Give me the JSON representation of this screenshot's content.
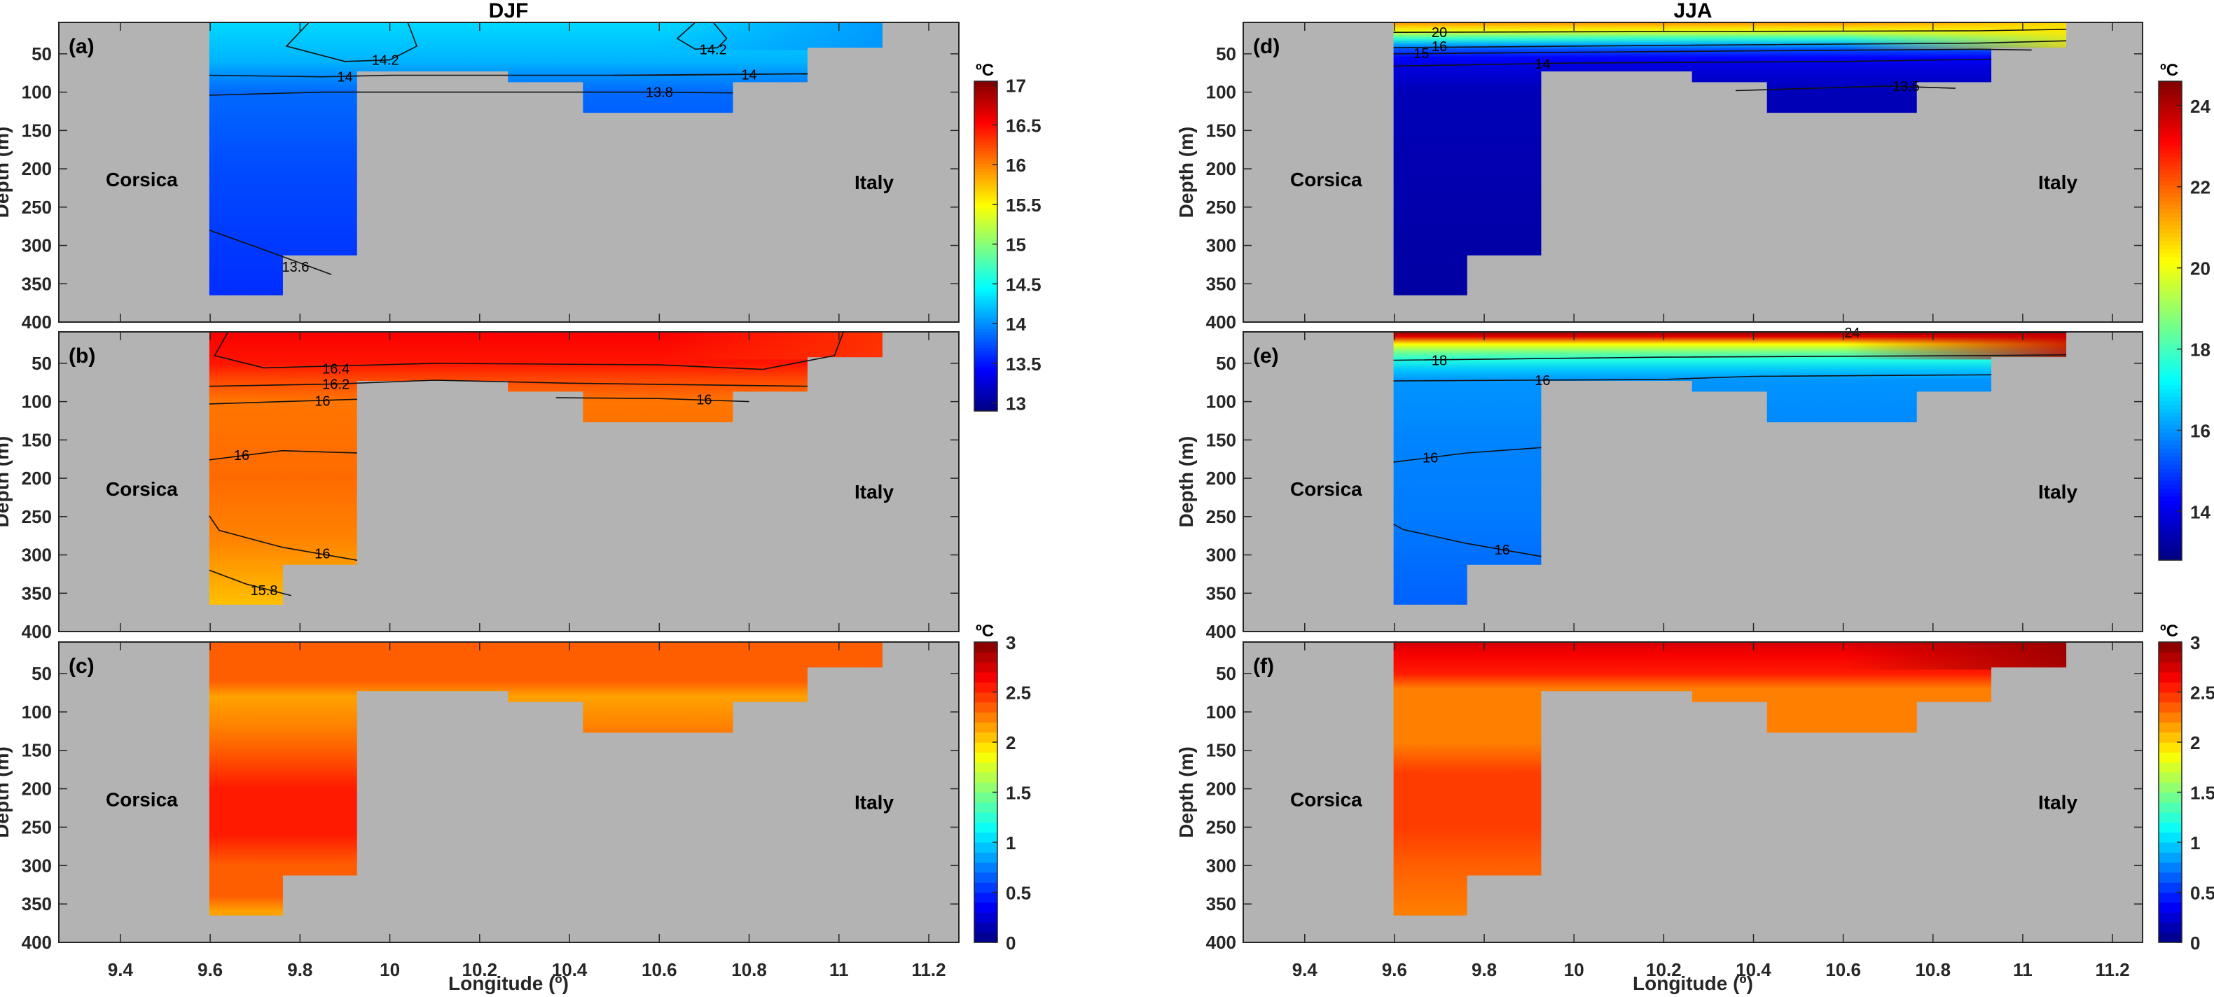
{
  "figure": {
    "column_titles": [
      "DJF",
      "JJA"
    ],
    "xlabel": "Longitude (º)",
    "ylabel": "Depth (m)",
    "left_place": "Corsica",
    "right_place": "Italy",
    "land_color": "#b3b3b3"
  },
  "chart_data": {
    "type": "heatmap",
    "description": "Temperature sections across the Corsica Channel (depth vs longitude), winter (DJF) and summer (JJA).",
    "xlim": [
      9.263,
      11.267
    ],
    "ylim": [
      9,
      400
    ],
    "x_ticks": [
      9.4,
      9.6,
      9.8,
      10,
      10.2,
      10.4,
      10.6,
      10.8,
      11,
      11.2
    ],
    "x_tick_labels": [
      "9.4",
      "9.6",
      "9.8",
      "10",
      "10.2",
      "10.4",
      "10.6",
      "10.8",
      "11",
      "11.2"
    ],
    "y_ticks": [
      50,
      100,
      150,
      200,
      250,
      300,
      350,
      400
    ],
    "y_tick_labels": [
      "50",
      "100",
      "150",
      "200",
      "250",
      "300",
      "350",
      "400"
    ],
    "bathymetry": [
      {
        "lon_from": 9.598,
        "lon_to": 9.762,
        "depth": 365
      },
      {
        "lon_from": 9.762,
        "lon_to": 9.927,
        "depth": 313
      },
      {
        "lon_from": 9.927,
        "lon_to": 10.263,
        "depth": 73
      },
      {
        "lon_from": 10.263,
        "lon_to": 10.43,
        "depth": 87
      },
      {
        "lon_from": 10.43,
        "lon_to": 10.764,
        "depth": 127
      },
      {
        "lon_from": 10.764,
        "lon_to": 10.93,
        "depth": 87
      },
      {
        "lon_from": 10.93,
        "lon_to": 11.097,
        "depth": 42
      }
    ],
    "colorbars": [
      {
        "id": "temp_djf",
        "unit": "ºC",
        "range": [
          12.9,
          17.05
        ],
        "ticks": [
          13,
          13.5,
          14,
          14.5,
          15,
          15.5,
          16,
          16.5,
          17
        ],
        "tick_labels": [
          "13",
          "13.5",
          "14",
          "14.5",
          "15",
          "15.5",
          "16",
          "16.5",
          "17"
        ],
        "discrete": false
      },
      {
        "id": "temp_jja",
        "unit": "ºC",
        "range": [
          12.8,
          24.6
        ],
        "ticks": [
          14,
          16,
          18,
          20,
          22,
          24
        ],
        "tick_labels": [
          "14",
          "16",
          "18",
          "20",
          "22",
          "24"
        ],
        "discrete": false
      },
      {
        "id": "std_djf",
        "unit": "ºC",
        "range": [
          0,
          3
        ],
        "ticks": [
          0,
          0.5,
          1,
          1.5,
          2,
          2.5,
          3
        ],
        "tick_labels": [
          "0",
          "0.5",
          "1",
          "1.5",
          "2",
          "2.5",
          "3"
        ],
        "discrete": true,
        "levels": 30
      },
      {
        "id": "std_jja",
        "unit": "ºC",
        "range": [
          0,
          3
        ],
        "ticks": [
          0,
          0.5,
          1,
          1.5,
          2,
          2.5,
          3
        ],
        "tick_labels": [
          "0",
          "0.5",
          "1",
          "1.5",
          "2",
          "2.5",
          "3"
        ],
        "discrete": true,
        "levels": 30
      }
    ],
    "panels": [
      {
        "tag": "(a)",
        "column": 0,
        "row": 0,
        "colorbar": "temp_djf",
        "profile": [
          [
            9,
            14.3
          ],
          [
            60,
            14.15
          ],
          [
            78,
            14.0
          ],
          [
            100,
            13.85
          ],
          [
            200,
            13.72
          ],
          [
            365,
            13.6
          ]
        ],
        "right_surface_value": 14.0,
        "contours": [
          {
            "level": "14.2",
            "points": [
              [
                9.82,
                9
              ],
              [
                9.77,
                40
              ],
              [
                9.9,
                60
              ],
              [
                10.0,
                58
              ],
              [
                10.06,
                40
              ],
              [
                10.04,
                9
              ]
            ],
            "label_at": [
              9.99,
              58
            ]
          },
          {
            "level": "14.2",
            "points": [
              [
                10.68,
                9
              ],
              [
                10.64,
                30
              ],
              [
                10.68,
                44
              ],
              [
                10.73,
                42
              ],
              [
                10.75,
                30
              ],
              [
                10.72,
                9
              ]
            ],
            "label_at": [
              10.72,
              44
            ]
          },
          {
            "level": "14",
            "points": [
              [
                9.598,
                78
              ],
              [
                9.85,
                80
              ],
              [
                10.0,
                78
              ],
              [
                10.28,
                78
              ],
              [
                10.6,
                78
              ],
              [
                10.93,
                76
              ]
            ],
            "label_at": [
              9.9,
              80
            ]
          },
          {
            "level": "14",
            "points": [
              [
                10.5,
                78
              ],
              [
                10.93,
                76
              ]
            ],
            "label_at": [
              10.8,
              77
            ]
          },
          {
            "level": "13.8",
            "points": [
              [
                9.598,
                104
              ],
              [
                9.85,
                100
              ],
              [
                10.43,
                100
              ],
              [
                10.6,
                100
              ],
              [
                10.764,
                101
              ]
            ],
            "label_at": [
              10.6,
              100
            ]
          },
          {
            "level": "13.6",
            "points": [
              [
                9.598,
                280
              ],
              [
                9.74,
                310
              ],
              [
                9.87,
                338
              ]
            ],
            "label_at": [
              9.79,
              328
            ]
          }
        ],
        "contour_labels": [
          "14.2",
          "14.2",
          "14",
          "14",
          "14",
          "13.8",
          "13.8",
          "13.6"
        ]
      },
      {
        "tag": "(b)",
        "column": 0,
        "row": 1,
        "colorbar": "temp_djf",
        "profile": [
          [
            9,
            16.55
          ],
          [
            50,
            16.45
          ],
          [
            70,
            16.25
          ],
          [
            100,
            16.05
          ],
          [
            200,
            16.1
          ],
          [
            280,
            16.0
          ],
          [
            365,
            15.75
          ]
        ],
        "right_surface_value": 16.3,
        "contours": [
          {
            "level": "16.4",
            "points": [
              [
                9.64,
                9
              ],
              [
                9.61,
                40
              ],
              [
                9.72,
                56
              ],
              [
                10.1,
                50
              ],
              [
                10.6,
                52
              ],
              [
                10.83,
                58
              ],
              [
                10.99,
                40
              ],
              [
                11.01,
                9
              ]
            ],
            "label_at": [
              9.88,
              57
            ]
          },
          {
            "level": "16.2",
            "points": [
              [
                9.598,
                80
              ],
              [
                9.88,
                77
              ],
              [
                10.1,
                72
              ],
              [
                10.4,
                76
              ],
              [
                10.93,
                80
              ]
            ],
            "label_at": [
              9.88,
              77
            ]
          },
          {
            "level": "16",
            "points": [
              [
                9.598,
                103
              ],
              [
                9.927,
                97
              ]
            ],
            "label_at": [
              9.85,
              99
            ]
          },
          {
            "level": "16",
            "points": [
              [
                10.37,
                95
              ],
              [
                10.6,
                96
              ],
              [
                10.8,
                100
              ]
            ],
            "label_at": [
              10.7,
              97
            ]
          },
          {
            "level": "16",
            "points": [
              [
                9.598,
                176
              ],
              [
                9.76,
                164
              ],
              [
                9.927,
                167
              ]
            ],
            "label_at": [
              9.67,
              170
            ]
          },
          {
            "level": "16",
            "points": [
              [
                9.598,
                249
              ],
              [
                9.62,
                268
              ],
              [
                9.76,
                290
              ],
              [
                9.927,
                307
              ]
            ],
            "label_at": [
              9.85,
              298
            ]
          },
          {
            "level": "15.8",
            "points": [
              [
                9.598,
                320
              ],
              [
                9.68,
                338
              ],
              [
                9.78,
                353
              ]
            ],
            "label_at": [
              9.72,
              346
            ]
          }
        ],
        "contour_labels": [
          "16.4",
          "16.4",
          "16.4",
          "16.2",
          "16.2",
          "16.2",
          "16",
          "16",
          "16",
          "16",
          "15.8"
        ]
      },
      {
        "tag": "(c)",
        "column": 0,
        "row": 2,
        "colorbar": "std_djf",
        "profile": [
          [
            9,
            2.3
          ],
          [
            60,
            2.3
          ],
          [
            80,
            2.15
          ],
          [
            120,
            2.2
          ],
          [
            150,
            2.35
          ],
          [
            200,
            2.55
          ],
          [
            260,
            2.5
          ],
          [
            300,
            2.35
          ],
          [
            340,
            2.3
          ],
          [
            360,
            2.15
          ]
        ],
        "right_surface_value": 2.3,
        "contours": [],
        "contour_labels": []
      },
      {
        "tag": "(d)",
        "column": 1,
        "row": 0,
        "colorbar": "temp_jja",
        "profile": [
          [
            9,
            21.5
          ],
          [
            14,
            20.8
          ],
          [
            20,
            20.0
          ],
          [
            30,
            17.8
          ],
          [
            38,
            16.2
          ],
          [
            44,
            15.2
          ],
          [
            55,
            14.3
          ],
          [
            66,
            13.9
          ],
          [
            100,
            13.45
          ],
          [
            365,
            13.2
          ]
        ],
        "right_surface_value": 20.5,
        "contours": [
          {
            "level": "20",
            "points": [
              [
                9.598,
                22
              ],
              [
                10.2,
                21
              ],
              [
                10.9,
                20
              ],
              [
                11.097,
                18
              ]
            ],
            "label_at": [
              9.7,
              22
            ]
          },
          {
            "level": "16",
            "points": [
              [
                9.598,
                42
              ],
              [
                10.2,
                39
              ],
              [
                10.9,
                36
              ],
              [
                11.097,
                33
              ]
            ],
            "label_at": [
              9.7,
              40
            ]
          },
          {
            "level": "15",
            "points": [
              [
                9.598,
                50
              ],
              [
                10.2,
                47
              ],
              [
                10.9,
                44
              ],
              [
                11.02,
                45
              ]
            ],
            "label_at": [
              9.66,
              49
            ]
          },
          {
            "level": "14",
            "points": [
              [
                9.598,
                66
              ],
              [
                10.0,
                62
              ],
              [
                10.6,
                60
              ],
              [
                10.93,
                57
              ]
            ],
            "label_at": [
              9.93,
              63
            ]
          },
          {
            "level": "13.5",
            "points": [
              [
                10.36,
                98
              ],
              [
                10.7,
                92
              ],
              [
                10.85,
                95
              ]
            ],
            "label_at": [
              10.74,
              92
            ]
          }
        ],
        "contour_labels": [
          "20",
          "20",
          "20",
          "20",
          "16",
          "16",
          "16",
          "16",
          "15",
          "15",
          "15",
          "15",
          "14",
          "14",
          "14",
          "14",
          "13.5"
        ]
      },
      {
        "tag": "(e)",
        "column": 1,
        "row": 1,
        "colorbar": "temp_jja",
        "profile": [
          [
            9,
            24.3
          ],
          [
            15,
            23.5
          ],
          [
            25,
            20.2
          ],
          [
            35,
            18.6
          ],
          [
            45,
            17.6
          ],
          [
            60,
            16.5
          ],
          [
            72,
            16.0
          ],
          [
            150,
            15.8
          ],
          [
            250,
            15.7
          ],
          [
            365,
            15.4
          ]
        ],
        "right_surface_value": 23.8,
        "contours": [
          {
            "level": "24",
            "points": [
              [
                10.43,
                9
              ],
              [
                10.8,
                10
              ],
              [
                11.097,
                10
              ]
            ],
            "label_at": [
              10.62,
              10
            ]
          },
          {
            "level": "18",
            "points": [
              [
                9.598,
                46
              ],
              [
                10.2,
                42
              ],
              [
                10.9,
                40
              ],
              [
                11.097,
                39
              ]
            ],
            "label_at": [
              9.7,
              46
            ]
          },
          {
            "level": "16",
            "points": [
              [
                9.598,
                73
              ],
              [
                10.2,
                71
              ],
              [
                10.4,
                67
              ],
              [
                10.93,
                65
              ]
            ],
            "label_at": [
              9.93,
              72
            ]
          },
          {
            "level": "16",
            "points": [
              [
                9.598,
                179
              ],
              [
                9.76,
                167
              ],
              [
                9.927,
                160
              ]
            ],
            "label_at": [
              9.68,
              173
            ]
          },
          {
            "level": "16",
            "points": [
              [
                9.598,
                260
              ],
              [
                9.62,
                267
              ],
              [
                9.76,
                285
              ],
              [
                9.927,
                302
              ]
            ],
            "label_at": [
              9.84,
              293
            ]
          }
        ],
        "contour_labels": [
          "24",
          "24",
          "18",
          "18",
          "18",
          "18",
          "16",
          "16",
          "16",
          "16",
          "16"
        ]
      },
      {
        "tag": "(f)",
        "column": 1,
        "row": 2,
        "colorbar": "std_jja",
        "profile": [
          [
            9,
            2.75
          ],
          [
            25,
            2.65
          ],
          [
            50,
            2.5
          ],
          [
            70,
            2.25
          ],
          [
            140,
            2.25
          ],
          [
            180,
            2.45
          ],
          [
            250,
            2.45
          ],
          [
            300,
            2.3
          ],
          [
            365,
            2.2
          ]
        ],
        "right_surface_value": 2.9,
        "contours": [],
        "contour_labels": []
      }
    ]
  }
}
